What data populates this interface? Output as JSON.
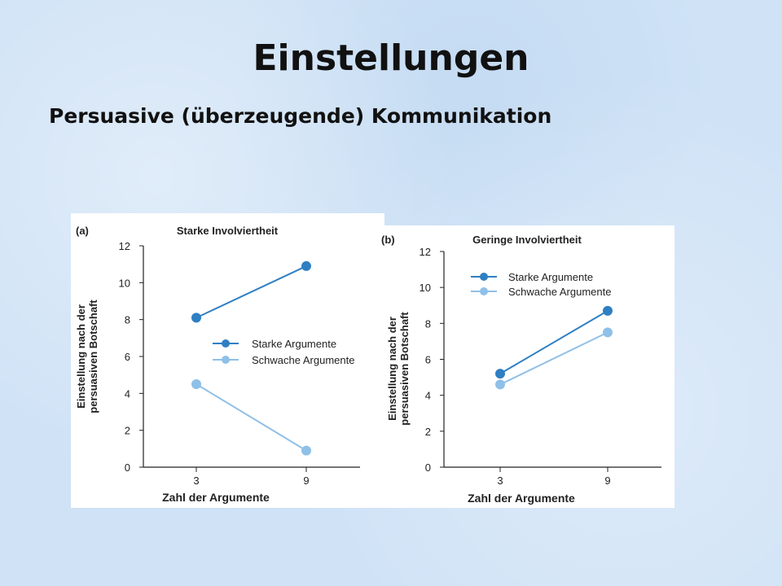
{
  "slide": {
    "title": "Einstellungen",
    "subtitle": "Persuasive (überzeugende) Kommunikation"
  },
  "chart_data": [
    {
      "type": "line",
      "panel_label": "(a)",
      "title": "Starke Involviertheit",
      "xlabel": "Zahl der Argumente",
      "ylabel": [
        "Einstellung nach der",
        "persuasiven Botschaft"
      ],
      "x": [
        3,
        9
      ],
      "ylim": [
        0,
        12
      ],
      "yticks": [
        0,
        2,
        4,
        6,
        8,
        10,
        12
      ],
      "legend_position": "right-middle",
      "series": [
        {
          "name": "Starke Argumente",
          "values": [
            8.1,
            10.9
          ],
          "color": "#2f7fc3"
        },
        {
          "name": "Schwache Argumente",
          "values": [
            4.5,
            0.9
          ],
          "color": "#8fc0e8"
        }
      ]
    },
    {
      "type": "line",
      "panel_label": "(b)",
      "title": "Geringe Involviertheit",
      "xlabel": "Zahl der Argumente",
      "ylabel": [
        "Einstellung nach der",
        "persuasiven Botschaft"
      ],
      "x": [
        3,
        9
      ],
      "ylim": [
        0,
        12
      ],
      "yticks": [
        0,
        2,
        4,
        6,
        8,
        10,
        12
      ],
      "legend_position": "top-left",
      "series": [
        {
          "name": "Starke Argumente",
          "values": [
            5.2,
            8.7
          ],
          "color": "#2f7fc3"
        },
        {
          "name": "Schwache Argumente",
          "values": [
            4.6,
            7.5
          ],
          "color": "#8fc0e8"
        }
      ]
    }
  ]
}
